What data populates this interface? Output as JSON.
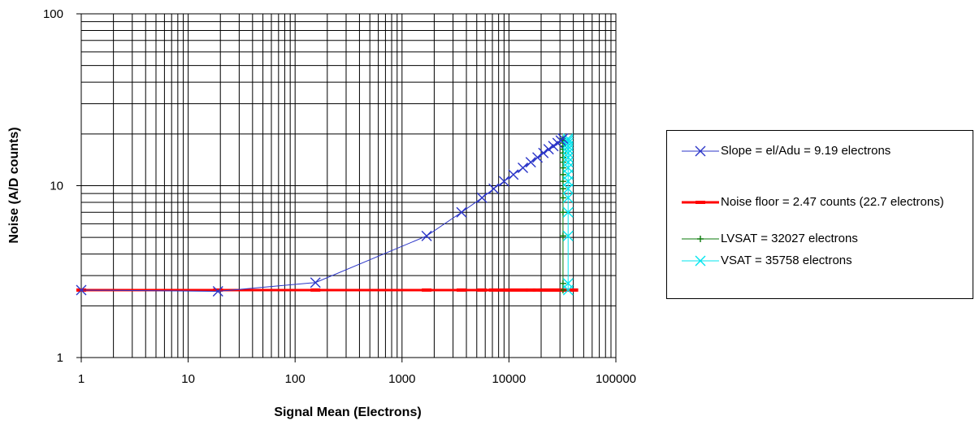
{
  "chart_data": {
    "type": "line",
    "xlabel": "Signal Mean (Electrons)",
    "ylabel": "Noise (A/D counts)",
    "xscale": "log",
    "yscale": "log",
    "xlim": [
      1,
      100000
    ],
    "ylim": [
      1,
      100
    ],
    "x_tick_labels": [
      "1",
      "10",
      "100",
      "1000",
      "10000",
      "100000"
    ],
    "y_tick_labels": [
      "1",
      "10",
      "100"
    ],
    "grid": true,
    "legend_position": "right",
    "series": [
      {
        "name": "Slope = el/Adu = 9.19 electrons",
        "color": "#2b35c8",
        "marker": "x",
        "points": [
          [
            1,
            2.47
          ],
          [
            19,
            2.43
          ],
          [
            155,
            2.73
          ],
          [
            1700,
            5.1
          ],
          [
            3600,
            7.0
          ],
          [
            5600,
            8.5
          ],
          [
            7200,
            9.6
          ],
          [
            9000,
            10.6
          ],
          [
            11000,
            11.6
          ],
          [
            13500,
            12.7
          ],
          [
            16000,
            13.7
          ],
          [
            18500,
            14.6
          ],
          [
            21000,
            15.5
          ],
          [
            23500,
            16.3
          ],
          [
            26000,
            17.0
          ],
          [
            28500,
            17.7
          ],
          [
            30500,
            18.3
          ],
          [
            32000,
            18.8
          ]
        ]
      },
      {
        "name": "Noise floor = 2.47 counts (22.7 electrons)",
        "color": "#ff0000",
        "marker": "dash",
        "points": [
          [
            1,
            2.47
          ],
          [
            19,
            2.47
          ],
          [
            155,
            2.47
          ],
          [
            1700,
            2.47
          ],
          [
            3600,
            2.47
          ],
          [
            5600,
            2.47
          ],
          [
            7200,
            2.47
          ],
          [
            9000,
            2.47
          ],
          [
            11000,
            2.47
          ],
          [
            13500,
            2.47
          ],
          [
            16000,
            2.47
          ],
          [
            18500,
            2.47
          ],
          [
            21000,
            2.47
          ],
          [
            23500,
            2.47
          ],
          [
            26000,
            2.47
          ],
          [
            28500,
            2.47
          ],
          [
            32027,
            2.47
          ],
          [
            35758,
            2.47
          ],
          [
            40000,
            2.47
          ]
        ]
      },
      {
        "name": "LVSAT = 32027 electrons",
        "color": "#0a7a0a",
        "marker": "+",
        "points": [
          [
            32027,
            2.47
          ],
          [
            32027,
            2.7
          ],
          [
            32027,
            5.1
          ],
          [
            32027,
            7.0
          ],
          [
            32027,
            8.5
          ],
          [
            32027,
            9.6
          ],
          [
            32027,
            10.6
          ],
          [
            32027,
            11.6
          ],
          [
            32027,
            12.7
          ],
          [
            32027,
            13.7
          ],
          [
            32027,
            14.6
          ],
          [
            32027,
            15.5
          ],
          [
            32027,
            16.3
          ],
          [
            32027,
            17.0
          ],
          [
            32027,
            17.7
          ],
          [
            32027,
            18.3
          ],
          [
            32027,
            18.8
          ]
        ]
      },
      {
        "name": "VSAT = 35758 electrons",
        "color": "#00e5ee",
        "marker": "x",
        "points": [
          [
            35758,
            2.47
          ],
          [
            35758,
            2.7
          ],
          [
            35758,
            5.1
          ],
          [
            35758,
            7.0
          ],
          [
            35758,
            8.5
          ],
          [
            35758,
            9.6
          ],
          [
            35758,
            10.6
          ],
          [
            35758,
            11.6
          ],
          [
            35758,
            12.7
          ],
          [
            35758,
            13.7
          ],
          [
            35758,
            14.6
          ],
          [
            35758,
            15.5
          ],
          [
            35758,
            16.3
          ],
          [
            35758,
            17.0
          ],
          [
            35758,
            17.7
          ],
          [
            35758,
            18.3
          ],
          [
            35758,
            18.8
          ]
        ]
      }
    ]
  }
}
